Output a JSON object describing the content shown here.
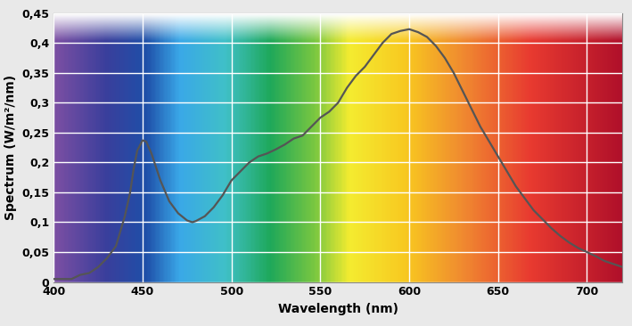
{
  "chart_data": {
    "type": "line",
    "x_label": "Wavelength (nm)",
    "y_label": "Spectrum (W/m²/nm)",
    "x": [
      400,
      405,
      410,
      415,
      420,
      425,
      430,
      435,
      440,
      443,
      445,
      447,
      450,
      452,
      455,
      460,
      465,
      470,
      475,
      478,
      480,
      485,
      490,
      495,
      500,
      505,
      510,
      515,
      520,
      525,
      530,
      535,
      540,
      545,
      550,
      555,
      560,
      565,
      570,
      575,
      580,
      585,
      590,
      595,
      600,
      605,
      610,
      615,
      620,
      625,
      630,
      635,
      640,
      645,
      650,
      655,
      660,
      665,
      670,
      675,
      680,
      685,
      690,
      695,
      700,
      705,
      710,
      715,
      720
    ],
    "values": [
      0.005,
      0.005,
      0.005,
      0.012,
      0.015,
      0.025,
      0.04,
      0.06,
      0.11,
      0.15,
      0.19,
      0.22,
      0.237,
      0.235,
      0.215,
      0.17,
      0.135,
      0.115,
      0.103,
      0.1,
      0.102,
      0.11,
      0.125,
      0.145,
      0.17,
      0.185,
      0.2,
      0.21,
      0.215,
      0.222,
      0.23,
      0.24,
      0.245,
      0.26,
      0.275,
      0.285,
      0.3,
      0.325,
      0.345,
      0.36,
      0.38,
      0.4,
      0.415,
      0.42,
      0.423,
      0.418,
      0.41,
      0.395,
      0.375,
      0.35,
      0.32,
      0.29,
      0.26,
      0.235,
      0.21,
      0.185,
      0.16,
      0.14,
      0.12,
      0.105,
      0.09,
      0.077,
      0.066,
      0.057,
      0.05,
      0.043,
      0.035,
      0.03,
      0.025
    ],
    "color": "#555555",
    "xlim": [
      400,
      720
    ],
    "xticks": [
      400,
      450,
      500,
      550,
      600,
      650,
      700
    ],
    "ylim": [
      0,
      0.45
    ],
    "yticks": [
      0,
      {
        "value": 0.05,
        "label": "0,05"
      },
      {
        "value": 0.1,
        "label": "0,1"
      },
      {
        "value": 0.15,
        "label": "0,15"
      },
      {
        "value": 0.2,
        "label": "0,2"
      },
      {
        "value": 0.25,
        "label": "0,25"
      },
      {
        "value": 0.3,
        "label": "0,3"
      },
      {
        "value": 0.35,
        "label": "0,35"
      },
      {
        "value": 0.4,
        "label": "0,4"
      },
      {
        "value": 0.45,
        "label": "0,45"
      }
    ],
    "grid": true
  }
}
